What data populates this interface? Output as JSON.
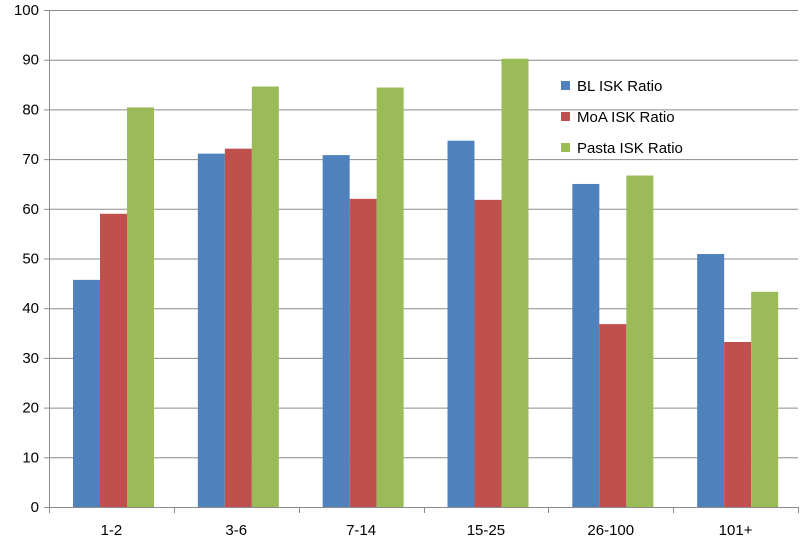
{
  "chart_data": {
    "type": "bar",
    "title": "",
    "xlabel": "",
    "ylabel": "",
    "categories": [
      "1-2",
      "3-6",
      "7-14",
      "15-25",
      "26-100",
      "101+"
    ],
    "series": [
      {
        "name": "BL ISK Ratio",
        "color": "#4f81bd",
        "values": [
          45.7,
          71.1,
          70.8,
          73.7,
          65.0,
          50.9
        ]
      },
      {
        "name": "MoA ISK Ratio",
        "color": "#c0504d",
        "values": [
          59.0,
          72.1,
          62.0,
          61.8,
          36.8,
          33.2
        ]
      },
      {
        "name": "Pasta ISK Ratio",
        "color": "#9bbb59",
        "values": [
          80.4,
          84.6,
          84.4,
          90.2,
          66.7,
          43.3
        ]
      }
    ],
    "ylim": [
      0,
      100
    ],
    "yticks": [
      0,
      10,
      20,
      30,
      40,
      50,
      60,
      70,
      80,
      90,
      100
    ],
    "grid": true,
    "legend_position": "top-right"
  }
}
